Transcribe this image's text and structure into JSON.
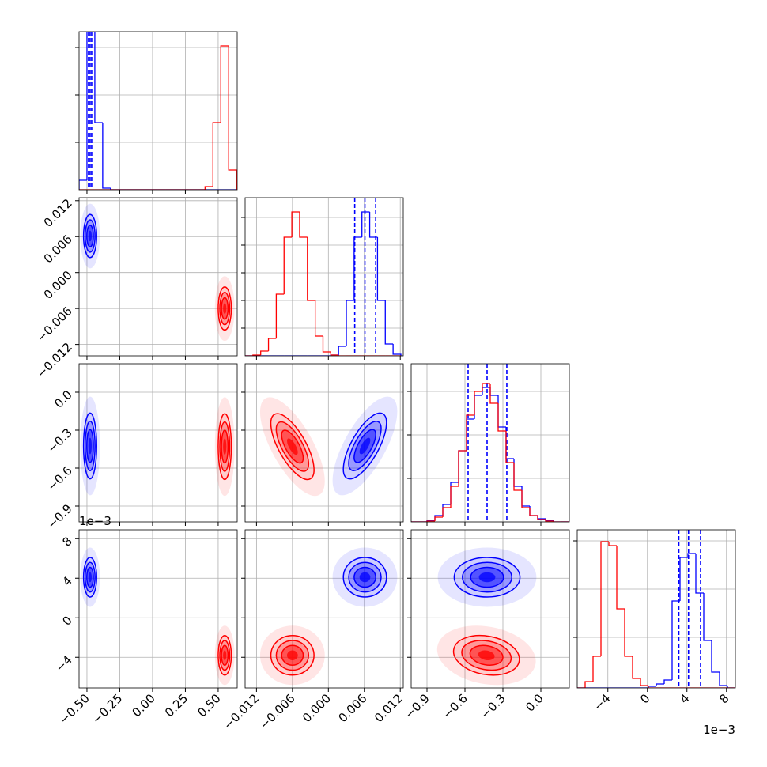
{
  "chart_data": {
    "type": "corner",
    "offset_label": "1e−3",
    "params": [
      {
        "lim": [
          -0.56,
          0.645
        ],
        "ticks": [
          {
            "value": -0.5,
            "label": "−0.50"
          },
          {
            "value": -0.25,
            "label": "−0.25"
          },
          {
            "value": 0,
            "label": "0.00"
          },
          {
            "value": 0.25,
            "label": "0.25"
          },
          {
            "value": 0.5,
            "label": "0.50"
          }
        ],
        "bins": [
          -0.56,
          -0.5,
          -0.44,
          -0.38,
          -0.32,
          -0.26,
          -0.2,
          -0.14,
          -0.08,
          -0.02,
          0.04,
          0.1,
          0.16,
          0.22,
          0.28,
          0.34,
          0.4,
          0.46,
          0.52,
          0.58,
          0.64
        ],
        "hist_ylim": [
          0,
          200
        ],
        "hist_yticks": [
          60,
          120,
          180
        ]
      },
      {
        "lim": [
          -0.0139,
          0.0125
        ],
        "ticks": [
          {
            "value": -0.012,
            "label": "−0.012"
          },
          {
            "value": -0.006,
            "label": "−0.006"
          },
          {
            "value": 0,
            "label": "0.000"
          },
          {
            "value": 0.006,
            "label": "0.006"
          },
          {
            "value": 0.012,
            "label": "0.012"
          }
        ],
        "bins": [
          -0.0139,
          -0.0126,
          -0.0113,
          -0.01,
          -0.0087,
          -0.0074,
          -0.0061,
          -0.0048,
          -0.0035,
          -0.0022,
          -0.0009,
          0.0004,
          0.0017,
          0.003,
          0.0043,
          0.0056,
          0.0069,
          0.0082,
          0.0095,
          0.0108,
          0.0121
        ],
        "hist_ylim": [
          0,
          200
        ],
        "hist_yticks": [
          35,
          70,
          105,
          140,
          175
        ]
      },
      {
        "lim": [
          -1.025,
          0.225
        ],
        "ticks": [
          {
            "value": -0.9,
            "label": "−0.9"
          },
          {
            "value": -0.6,
            "label": "−0.6"
          },
          {
            "value": -0.3,
            "label": "−0.3"
          },
          {
            "value": 0,
            "label": "0.0"
          }
        ],
        "bins": [
          -1.025,
          -0.9625,
          -0.9,
          -0.8375,
          -0.775,
          -0.7125,
          -0.65,
          -0.5875,
          -0.525,
          -0.4625,
          -0.4,
          -0.3375,
          -0.275,
          -0.2125,
          -0.15,
          -0.0875,
          -0.025,
          0.0375,
          0.1,
          0.1625,
          0.225
        ],
        "hist_ylim": [
          0,
          200
        ],
        "hist_yticks": [
          55,
          110,
          165
        ]
      },
      {
        "lim": [
          -7.1,
          8.9
        ],
        "ticks": [
          {
            "value": -4,
            "label": "−4"
          },
          0,
          4,
          8
        ],
        "bins": [
          -7.1,
          -6.3,
          -5.5,
          -4.7,
          -3.9,
          -3.1,
          -2.3,
          -1.5,
          -0.7,
          0.1,
          0.9,
          1.7,
          2.5,
          3.3,
          4.1,
          4.9,
          5.7,
          6.5,
          7.3,
          8.1,
          8.9
        ],
        "hist_ylim": [
          0,
          200
        ],
        "hist_yticks": [
          64,
          125,
          186
        ]
      }
    ],
    "series": [
      {
        "color": "#0000ff",
        "mean": [
          -0.476,
          0.0061,
          -0.425,
          4.1
        ],
        "std": [
          0.025,
          0.0018,
          0.13,
          1.0
        ],
        "rho": [
          [
            0
          ],
          [
            0,
            0.7
          ],
          [
            0,
            0,
            0
          ]
        ],
        "quantiles": [
          [
            -0.488,
            -0.476,
            -0.464
          ],
          [
            0.0044,
            0.0061,
            0.0079
          ],
          [
            -0.575,
            -0.425,
            -0.269
          ],
          [
            3.18,
            4.16,
            5.38
          ]
        ],
        "hist": [
          [
            12,
            400,
            85,
            2,
            0,
            0,
            0,
            0,
            0,
            0,
            0,
            0,
            0,
            0,
            0,
            0,
            0,
            0,
            0,
            0
          ],
          [
            0,
            0,
            0,
            0,
            0,
            0,
            0,
            0,
            0,
            0,
            0,
            1,
            12,
            70,
            150,
            182,
            150,
            70,
            15,
            2
          ],
          [
            0,
            0,
            2,
            8,
            22,
            50,
            90,
            130,
            160,
            170,
            160,
            120,
            80,
            45,
            20,
            8,
            4,
            2,
            0,
            0
          ],
          [
            0,
            0,
            0,
            0,
            0,
            0,
            0,
            0,
            0,
            2,
            5,
            10,
            110,
            165,
            170,
            120,
            60,
            20,
            3,
            0
          ]
        ]
      },
      {
        "color": "#ff0000",
        "mean": [
          0.55,
          -0.006,
          -0.43,
          -3.8
        ],
        "std": [
          0.025,
          0.0018,
          0.13,
          1.0
        ],
        "rho": [
          [
            0
          ],
          [
            0,
            -0.7
          ],
          [
            0,
            0,
            -0.2
          ]
        ],
        "hist": [
          [
            0,
            0,
            0,
            0,
            0,
            0,
            0,
            0,
            0,
            0,
            0,
            0,
            0,
            0,
            0,
            0,
            4,
            85,
            182,
            25
          ],
          [
            0,
            1,
            6,
            22,
            78,
            150,
            182,
            150,
            70,
            25,
            5,
            1,
            0,
            0,
            0,
            0,
            0,
            0,
            0,
            0
          ],
          [
            0,
            0,
            1,
            6,
            18,
            45,
            90,
            135,
            165,
            175,
            150,
            115,
            75,
            40,
            18,
            8,
            3,
            1,
            0,
            0
          ],
          [
            0,
            8,
            40,
            185,
            180,
            100,
            40,
            12,
            3,
            0,
            0,
            0,
            0,
            0,
            0,
            0,
            0,
            0,
            0,
            0
          ]
        ]
      }
    ],
    "grid": true
  }
}
